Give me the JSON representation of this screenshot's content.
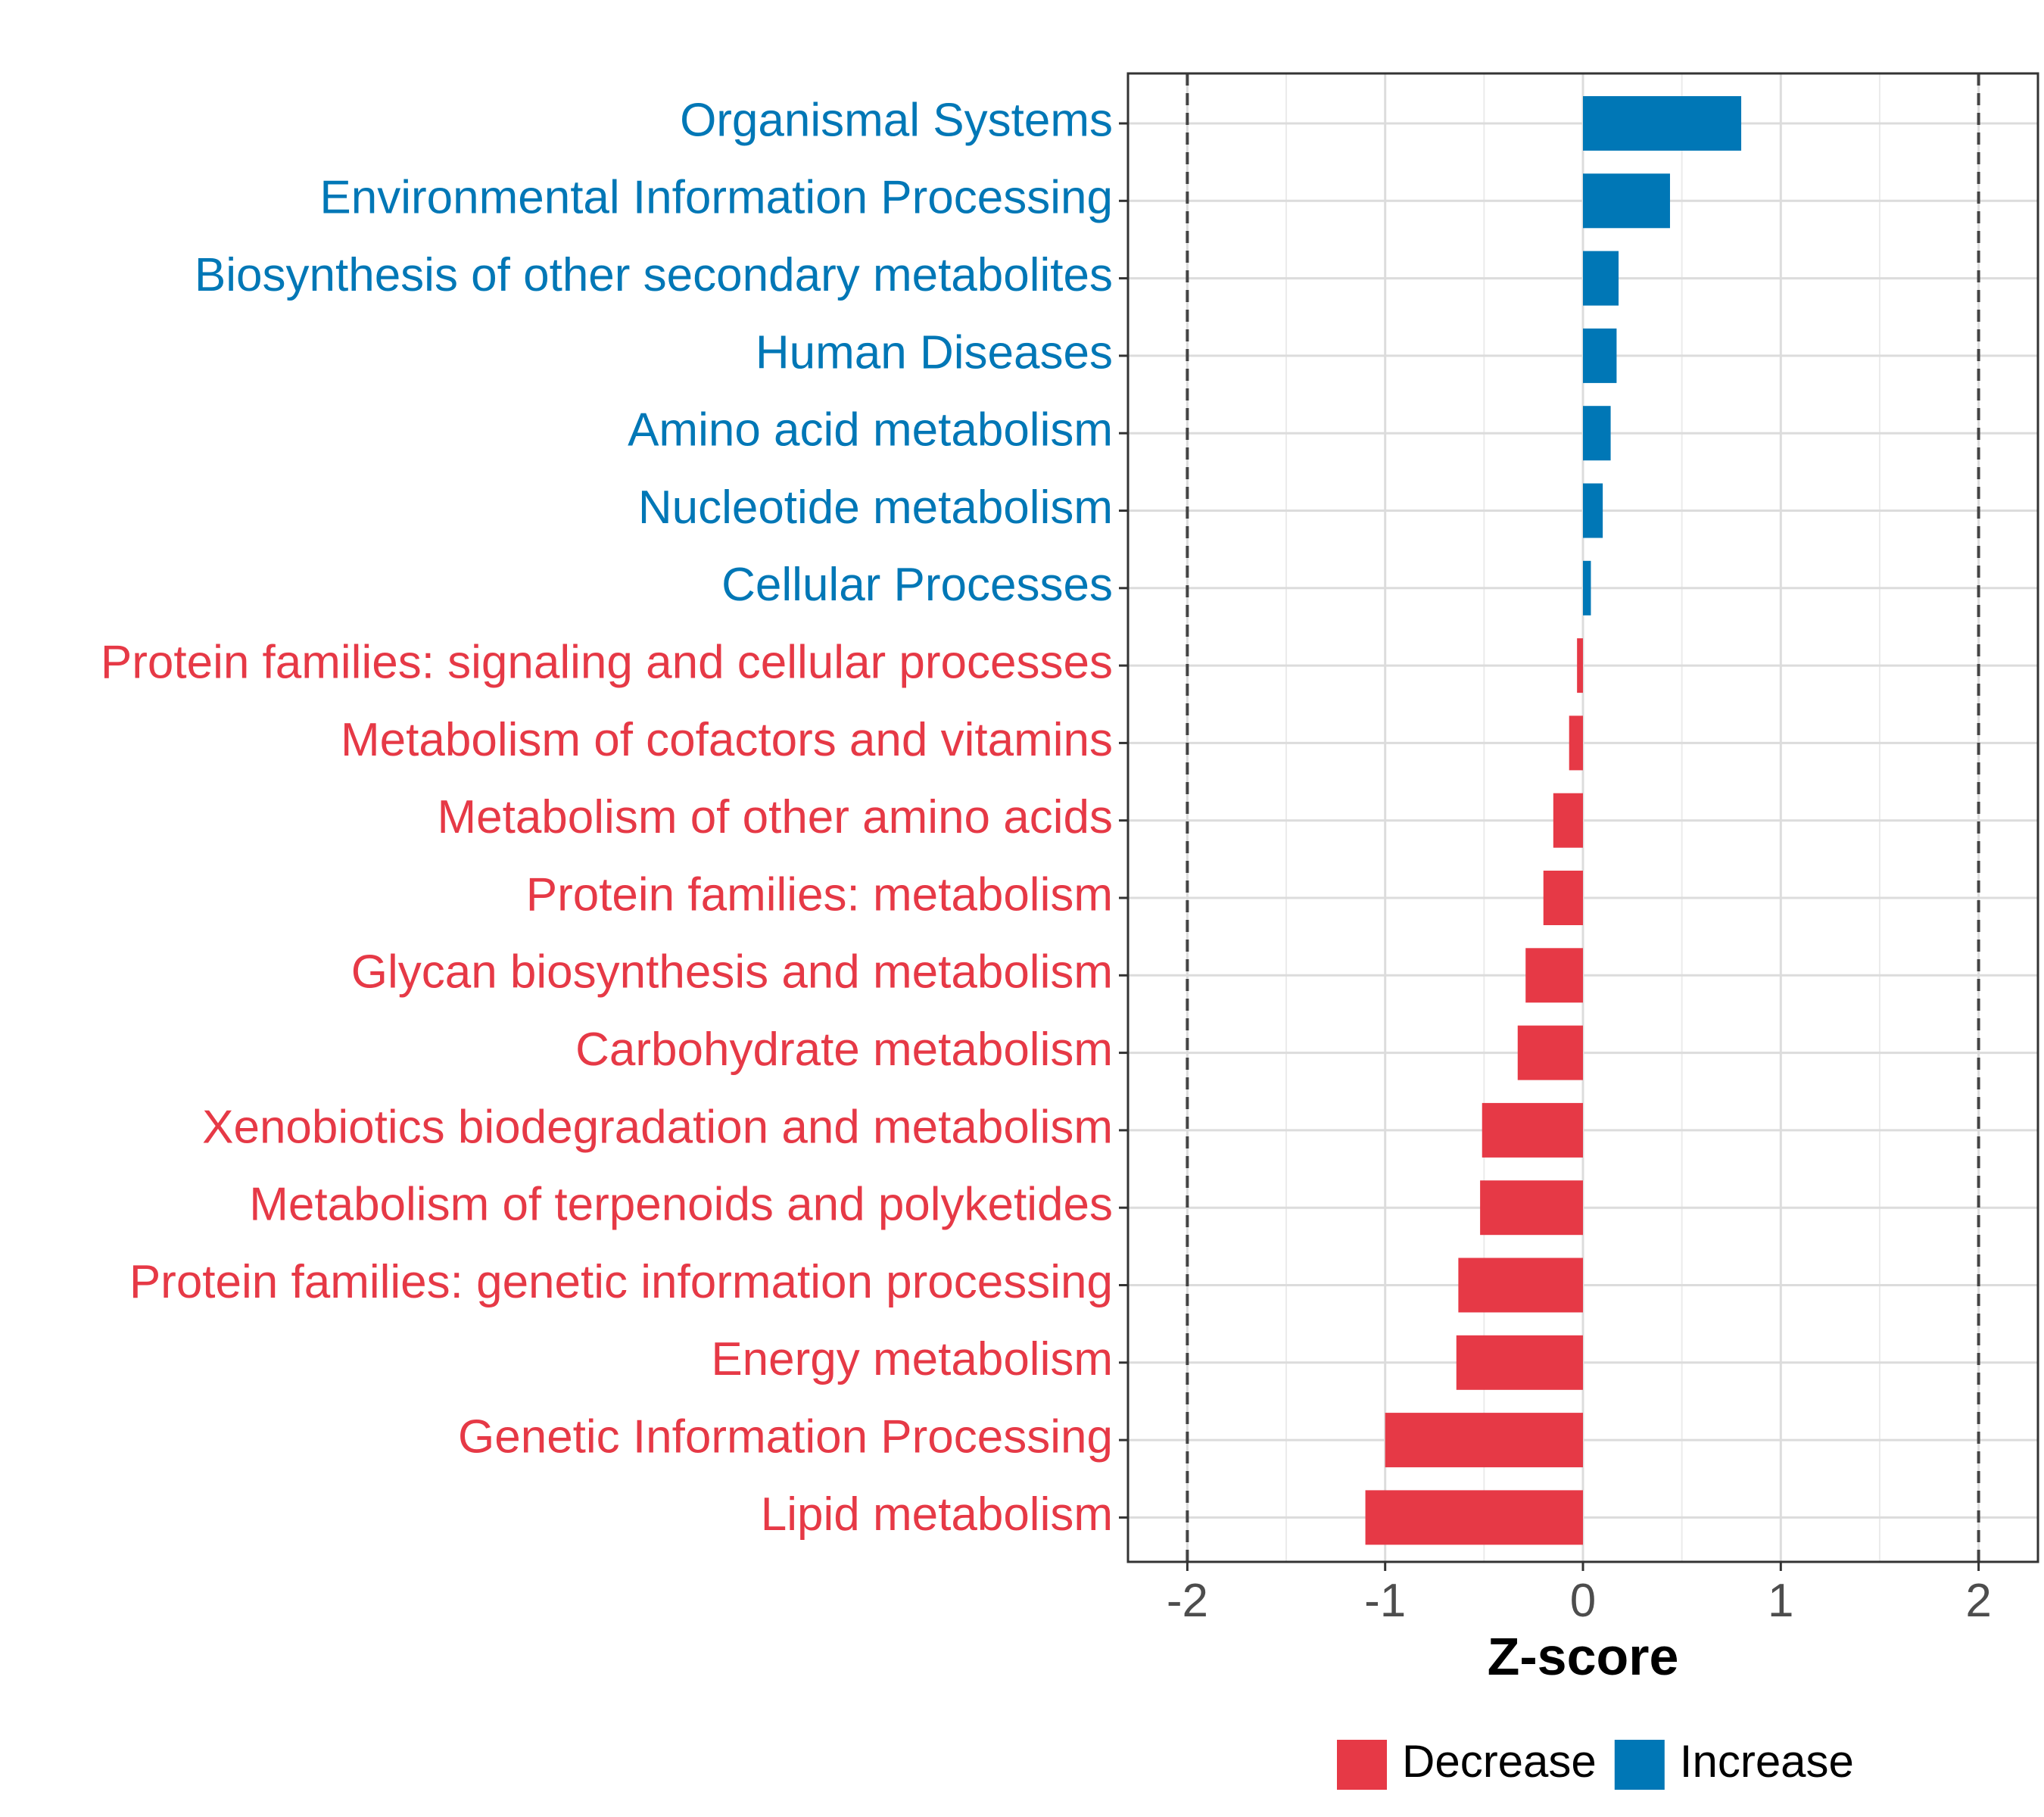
{
  "chart_data": {
    "type": "bar",
    "orientation": "horizontal",
    "xlabel": "Z-score",
    "ylabel": "",
    "xlim": [
      -2.3,
      2.3
    ],
    "x_ticks": [
      -2,
      -1,
      0,
      1,
      2
    ],
    "x_tick_labels": [
      "-2",
      "-1",
      "0",
      "1",
      "2"
    ],
    "reference_lines": [
      -2,
      2
    ],
    "grid": true,
    "categories": [
      "Organismal Systems",
      "Environmental Information Processing",
      "Biosynthesis of other secondary metabolites",
      "Human Diseases",
      "Amino acid metabolism",
      "Nucleotide metabolism",
      "Cellular Processes",
      "Protein families: signaling and cellular processes",
      "Metabolism of cofactors and vitamins",
      "Metabolism of other amino acids",
      "Protein families: metabolism",
      "Glycan biosynthesis and metabolism",
      "Carbohydrate metabolism",
      "Xenobiotics biodegradation and metabolism",
      "Metabolism of terpenoids and polyketides",
      "Protein families: genetic information processing",
      "Energy metabolism",
      "Genetic Information Processing",
      "Lipid metabolism"
    ],
    "values": [
      0.8,
      0.44,
      0.18,
      0.17,
      0.14,
      0.1,
      0.04,
      -0.03,
      -0.07,
      -0.15,
      -0.2,
      -0.29,
      -0.33,
      -0.51,
      -0.52,
      -0.63,
      -0.64,
      -1.0,
      -1.1
    ],
    "groups": [
      "Increase",
      "Increase",
      "Increase",
      "Increase",
      "Increase",
      "Increase",
      "Increase",
      "Decrease",
      "Decrease",
      "Decrease",
      "Decrease",
      "Decrease",
      "Decrease",
      "Decrease",
      "Decrease",
      "Decrease",
      "Decrease",
      "Decrease",
      "Decrease"
    ],
    "legend": {
      "placement": "bottom",
      "entries": [
        {
          "label": "Decrease",
          "color": "#e63946"
        },
        {
          "label": "Increase",
          "color": "#0077b6"
        }
      ]
    },
    "colors": {
      "Decrease": "#e63946",
      "Increase": "#0077b6"
    }
  }
}
